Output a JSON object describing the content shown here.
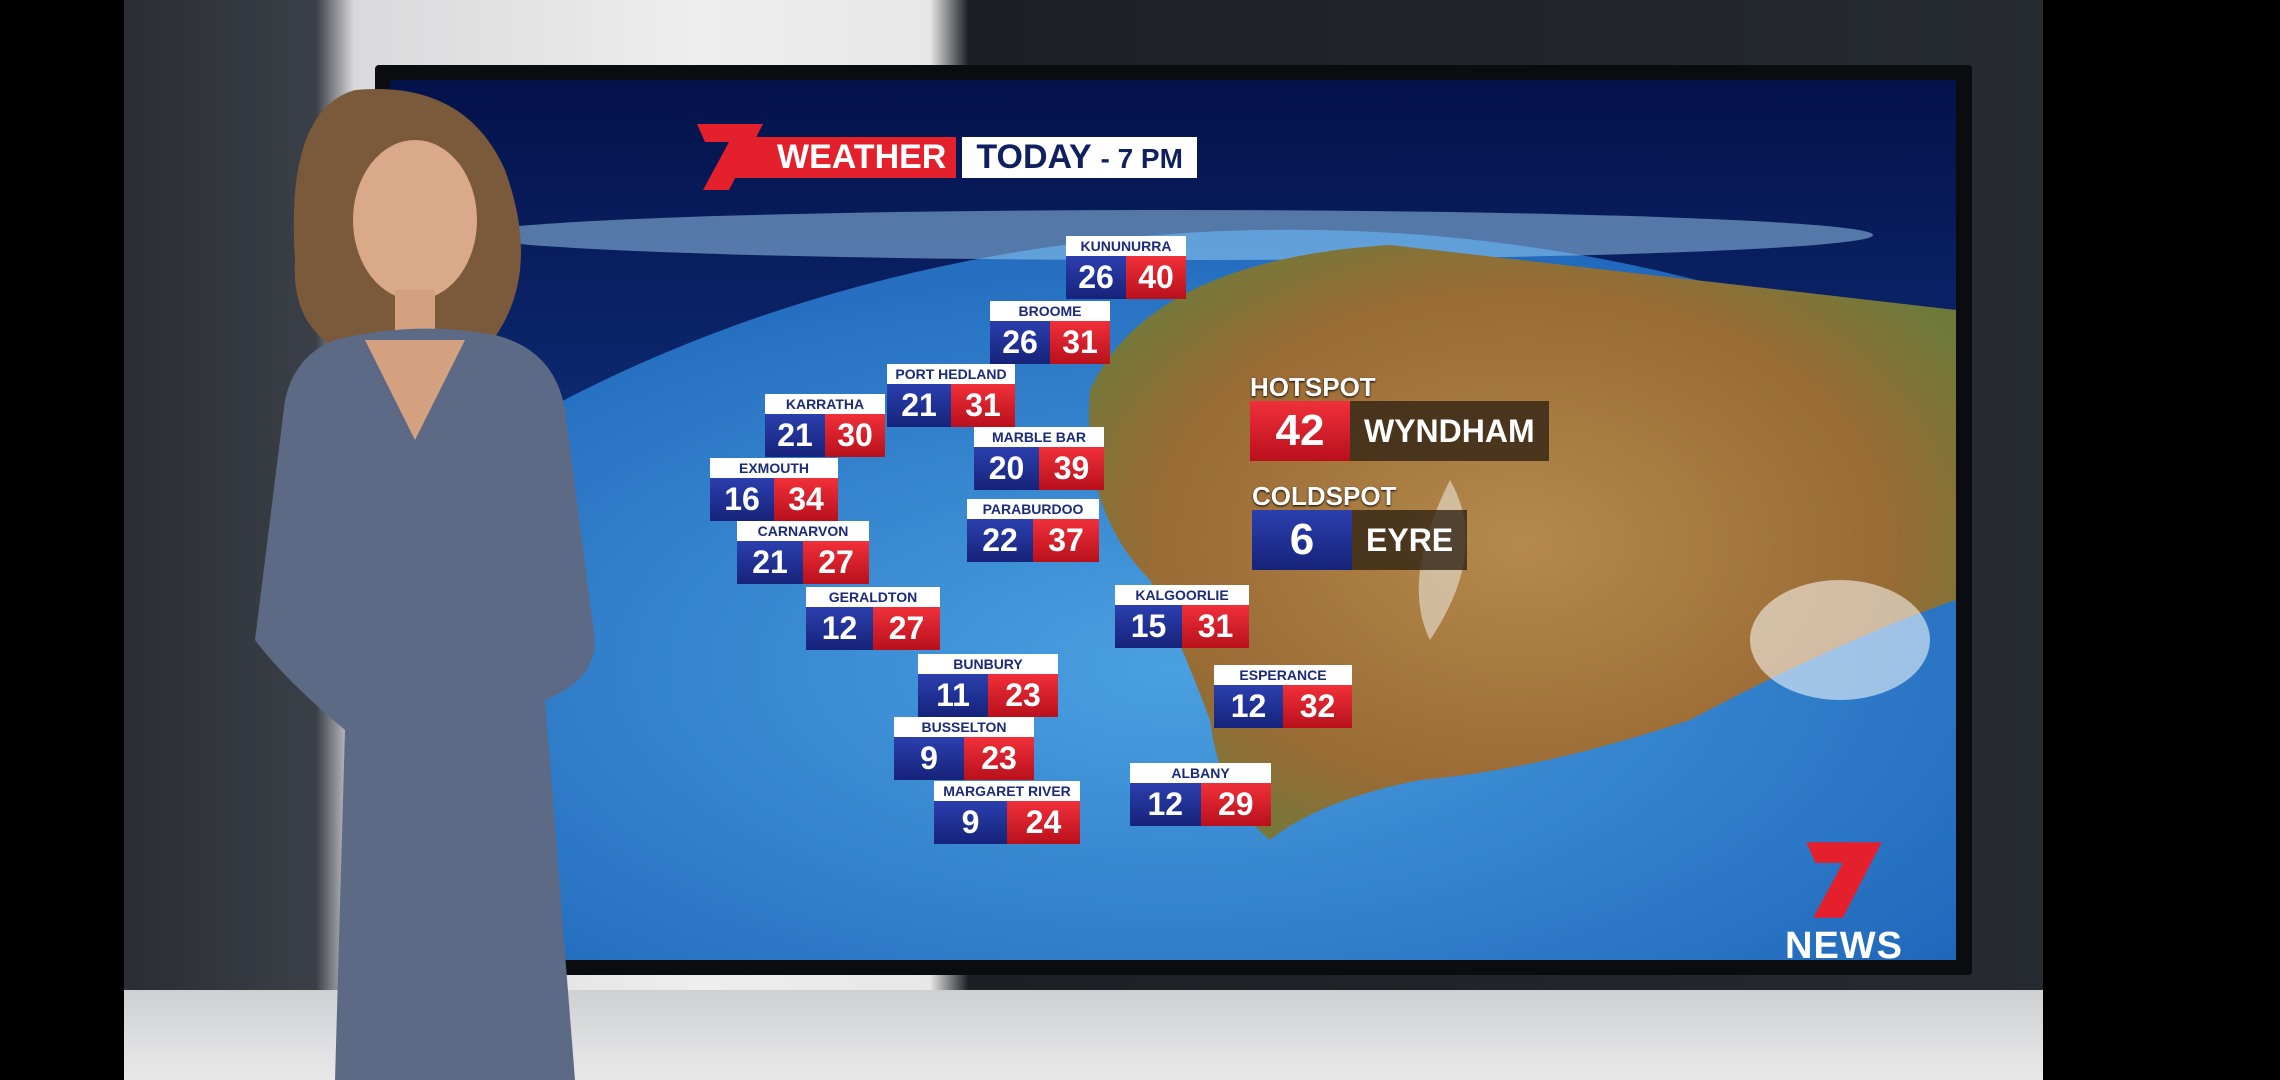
{
  "header": {
    "brand_number": "7",
    "brand_label": "WEATHER",
    "title": "TODAY",
    "time": "- 7 PM"
  },
  "cities": [
    {
      "name": "KUNUNURRA",
      "min": "26",
      "max": "40"
    },
    {
      "name": "BROOME",
      "min": "26",
      "max": "31"
    },
    {
      "name": "PORT HEDLAND",
      "min": "21",
      "max": "31"
    },
    {
      "name": "KARRATHA",
      "min": "21",
      "max": "30"
    },
    {
      "name": "MARBLE BAR",
      "min": "20",
      "max": "39"
    },
    {
      "name": "EXMOUTH",
      "min": "16",
      "max": "34"
    },
    {
      "name": "PARABURDOO",
      "min": "22",
      "max": "37"
    },
    {
      "name": "CARNARVON",
      "min": "21",
      "max": "27"
    },
    {
      "name": "GERALDTON",
      "min": "12",
      "max": "27"
    },
    {
      "name": "KALGOORLIE",
      "min": "15",
      "max": "31"
    },
    {
      "name": "BUNBURY",
      "min": "11",
      "max": "23"
    },
    {
      "name": "ESPERANCE",
      "min": "12",
      "max": "32"
    },
    {
      "name": "BUSSELTON",
      "min": "9",
      "max": "23"
    },
    {
      "name": "ALBANY",
      "min": "12",
      "max": "29"
    },
    {
      "name": "MARGARET RIVER",
      "min": "9",
      "max": "24"
    }
  ],
  "hotspot": {
    "label": "HOTSPOT",
    "value": "42",
    "place": "WYNDHAM"
  },
  "coldspot": {
    "label": "COLDSPOT",
    "value": "6",
    "place": "EYRE"
  },
  "logo": {
    "number": "7",
    "text": "NEWS"
  },
  "colors": {
    "min_temp": "#1e2f96",
    "max_temp": "#e3202b",
    "brand_red": "#e3202b"
  }
}
